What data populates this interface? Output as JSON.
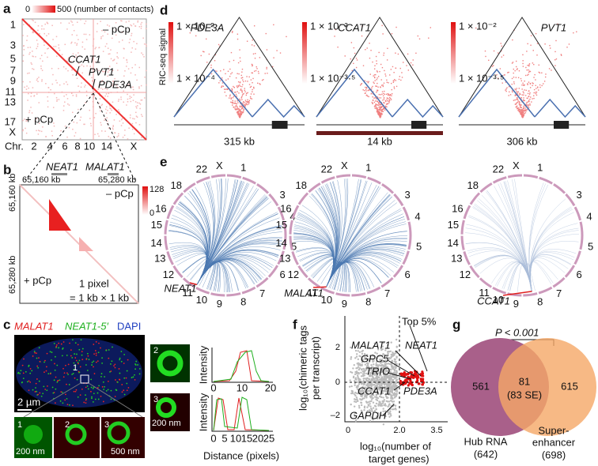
{
  "a": {
    "label": "a",
    "cbar_min": "0",
    "cbar_max": "500 (number of contacts)",
    "minus": "– pCp",
    "plus": "+ pCp",
    "chr_left": [
      "1",
      "3",
      "5",
      "7",
      "9",
      "11",
      "13",
      "17",
      "X"
    ],
    "chr_axis": "Chr.",
    "chr_bottom": [
      "2",
      "4",
      "6",
      "8",
      "10",
      "14",
      "X"
    ],
    "genes": [
      "CCAT1",
      "PVT1",
      "PDE3A"
    ]
  },
  "b": {
    "label": "b",
    "genes": [
      "NEAT1",
      "MALAT1"
    ],
    "top_coords": [
      "65,160 kb",
      "65,280 kb"
    ],
    "left_coords": [
      "65,160 kb",
      "65,280 kb"
    ],
    "cbar_max": "128",
    "cbar_min": "0",
    "minus": "– pCp",
    "plus": "+ pCp",
    "pixel": "1 pixel",
    "pixel_size": "= 1 kb × 1 kb"
  },
  "c": {
    "label": "c",
    "channels": [
      "MALAT1",
      "NEAT1-5′",
      "DAPI"
    ],
    "box": "1",
    "scale_main": "2 µm",
    "insets": [
      "1",
      "2",
      "3"
    ],
    "scale_inset1": "200 nm",
    "scale_inset3": "500 nm",
    "zoom": [
      "2",
      "3"
    ],
    "scale_zoom": "200 nm",
    "ylabel": "Intensity",
    "xticks1": [
      "0",
      "10",
      "20"
    ],
    "xticks2": [
      "0",
      "5",
      "10",
      "15",
      "20",
      "25"
    ],
    "xlabel": "Distance (pixels)"
  },
  "d": {
    "label": "d",
    "ylabel": "RIC-seq signal",
    "maps": [
      {
        "gene": "PDE3A",
        "high": "1 × 10⁻²",
        "low": "1 × 10⁻⁴",
        "size": "315 kb"
      },
      {
        "gene": "CCAT1",
        "high": "1 × 10⁻²",
        "low": "1 × 10⁻³·⁵",
        "size": "14 kb"
      },
      {
        "gene": "PVT1",
        "high": "1 × 10⁻²",
        "low": "1 × 10⁻³·⁵",
        "size": "306 kb"
      }
    ]
  },
  "e": {
    "label": "e",
    "chromosomes": [
      "1",
      "3",
      "4",
      "5",
      "6",
      "7",
      "8",
      "9",
      "10",
      "11",
      "12",
      "13",
      "14",
      "15",
      "16",
      "18",
      "22",
      "X"
    ],
    "genes": [
      "NEAT1",
      "MALAT1",
      "CCAT1"
    ]
  },
  "f": {
    "label": "f",
    "ylabel": [
      "log₁₀(chimeric tags",
      "per transcript)"
    ],
    "xlabel": [
      "log₁₀(number of",
      "target genes)"
    ],
    "yticks": [
      "2",
      "0",
      "–2"
    ],
    "xticks": [
      "0",
      "2.0",
      "3.5"
    ],
    "top": "Top 5%",
    "genes": [
      "MALAT1",
      "NEAT1",
      "GPC5",
      "TRIO",
      "CCAT1",
      "PDE3A",
      "GAPDH"
    ]
  },
  "g": {
    "label": "g",
    "pvalue": "P < 0.001",
    "left": "561",
    "overlap": "81",
    "overlap_se": "(83 SE)",
    "right": "615",
    "set1": [
      "Hub RNA",
      "(642)"
    ],
    "set2": [
      "Super-",
      "enhancer",
      "(698)"
    ]
  }
}
